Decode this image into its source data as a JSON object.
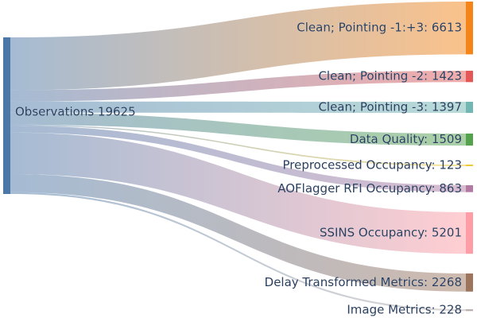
{
  "diagram": {
    "type": "sankey",
    "source": {
      "label": "Observations 19625",
      "value": 19625,
      "color": "#4c78a8"
    },
    "targets": [
      {
        "id": "clean-pointing-1-3",
        "label": "Clean; Pointing -1:+3: 6613",
        "value": 6613,
        "color": "#f58518"
      },
      {
        "id": "clean-pointing-2",
        "label": "Clean; Pointing -2: 1423",
        "value": 1423,
        "color": "#e45756"
      },
      {
        "id": "clean-pointing-3",
        "label": "Clean; Pointing -3: 1397",
        "value": 1397,
        "color": "#72b7b2"
      },
      {
        "id": "data-quality",
        "label": "Data Quality: 1509",
        "value": 1509,
        "color": "#54a24b"
      },
      {
        "id": "preprocessed-occupancy",
        "label": "Preprocessed Occupancy: 123",
        "value": 123,
        "color": "#eeca3b"
      },
      {
        "id": "aoflagger-rfi-occupancy",
        "label": "AOFlagger RFI Occupancy: 863",
        "value": 863,
        "color": "#b279a2"
      },
      {
        "id": "ssins-occupancy",
        "label": "SSINS Occupancy: 5201",
        "value": 5201,
        "color": "#ff9da6"
      },
      {
        "id": "delay-transformed-metrics",
        "label": "Delay Transformed Metrics: 2268",
        "value": 2268,
        "color": "#9d755d"
      },
      {
        "id": "image-metrics",
        "label": "Image Metrics: 228",
        "value": 228,
        "color": "#bab0ac"
      }
    ]
  }
}
